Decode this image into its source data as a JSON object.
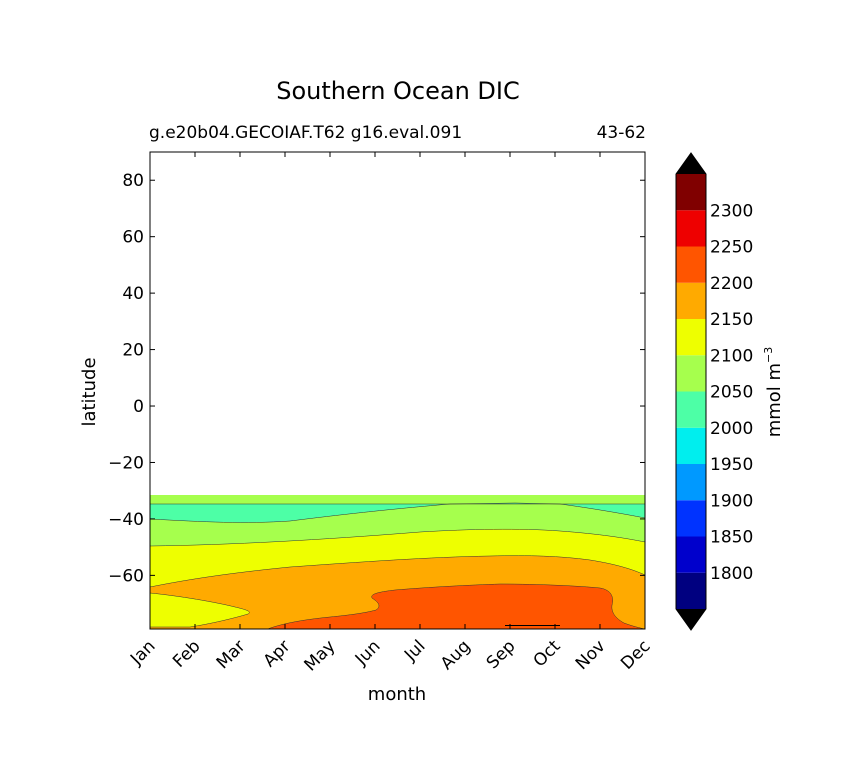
{
  "chart_data": {
    "type": "contourf",
    "title": "Southern Ocean DIC",
    "subtitle_left": "g.e20b04.GECOIAF.T62 g16.eval.091",
    "subtitle_right": "43-62",
    "xlabel": "month",
    "ylabel": "latitude",
    "x_categories": [
      "Jan",
      "Feb",
      "Mar",
      "Apr",
      "May",
      "Jun",
      "Jul",
      "Aug",
      "Sep",
      "Oct",
      "Nov",
      "Dec"
    ],
    "ylim": [
      -79,
      90
    ],
    "yticks": [
      80,
      60,
      40,
      20,
      0,
      -20,
      -40,
      -60
    ],
    "ytick_labels": [
      "80",
      "60",
      "40",
      "20",
      "0",
      "−20",
      "−40",
      "−60"
    ],
    "colorbar": {
      "label": "mmol m",
      "label_superscript": "−3",
      "extend": "both",
      "levels": [
        1750,
        1800,
        1850,
        1900,
        1950,
        2000,
        2050,
        2100,
        2150,
        2200,
        2250,
        2300,
        2350
      ],
      "tick_labels": [
        "1800",
        "1850",
        "1900",
        "1950",
        "2000",
        "2050",
        "2100",
        "2150",
        "2200",
        "2250",
        "2300"
      ],
      "colors": [
        "#000080",
        "#0000cc",
        "#0033ff",
        "#0099ff",
        "#00eeee",
        "#4dffa6",
        "#a6ff4d",
        "#eeff00",
        "#ffaa00",
        "#ff5500",
        "#ee0000",
        "#800000"
      ],
      "under_color": "#000000",
      "over_color": "#000000"
    },
    "contour_regions": [
      {
        "band": "2050-2100",
        "color": "#a6ff4d",
        "lat_range": [
          -34,
          -32
        ]
      },
      {
        "band": "2000-2050",
        "color": "#4dffa6",
        "lat_range": [
          -41,
          -34
        ]
      },
      {
        "band": "2050-2100",
        "color": "#a6ff4d",
        "lat_range": [
          -49,
          -36
        ]
      },
      {
        "band": "2100-2150",
        "color": "#eeff00",
        "lat_range": [
          -64,
          -43
        ]
      },
      {
        "band": "2150-2200",
        "color": "#ffaa00",
        "lat_range": [
          -79,
          -52
        ]
      },
      {
        "band": "2200-2250",
        "color": "#ff5500",
        "lat_range": [
          -79,
          -62
        ]
      }
    ]
  }
}
